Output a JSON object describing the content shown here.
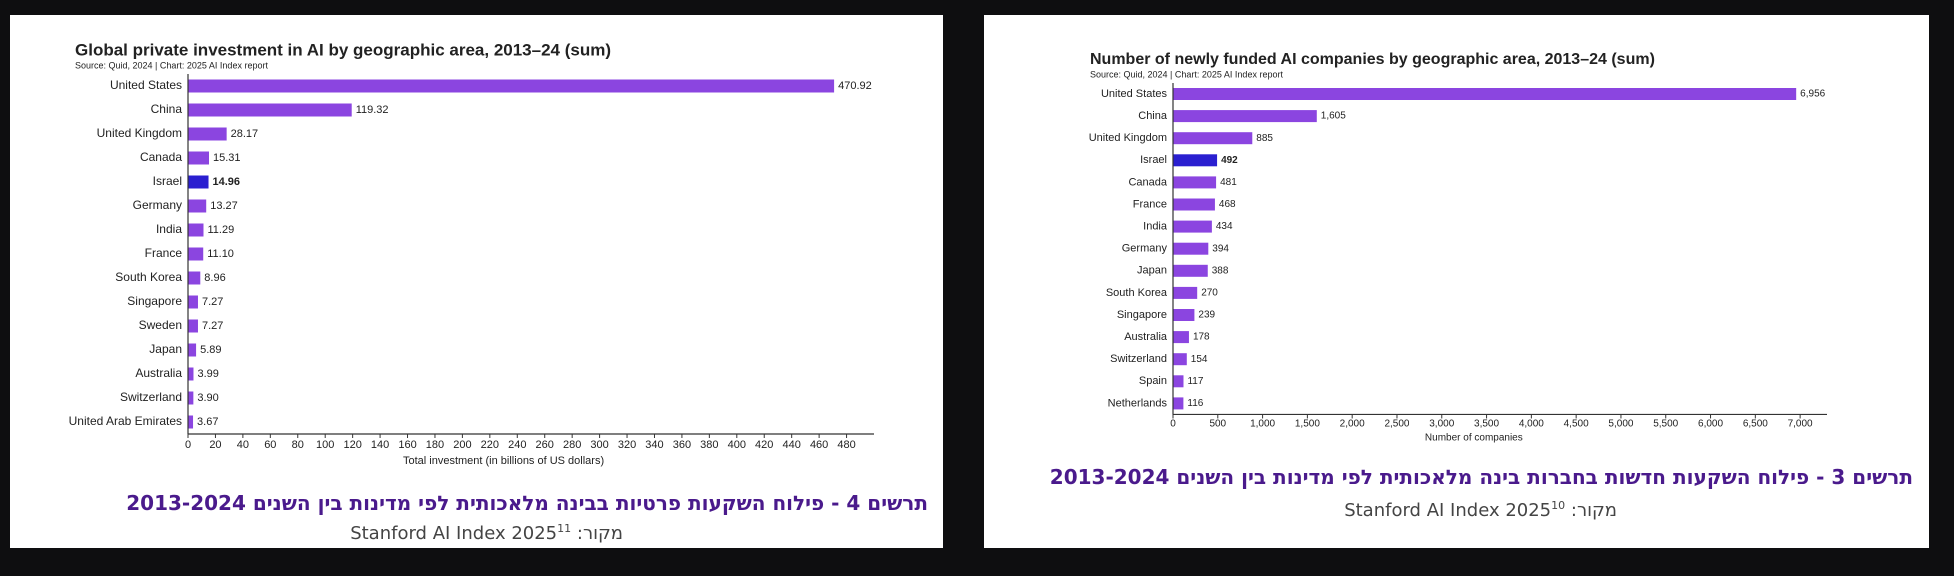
{
  "chart_data": [
    {
      "type": "bar",
      "orientation": "horizontal",
      "title": "Global private investment in AI by geographic area, 2013–24 (sum)",
      "subtitle": "Source: Quid, 2024 | Chart: 2025 AI Index report",
      "categories": [
        "United States",
        "China",
        "United Kingdom",
        "Canada",
        "Israel",
        "Germany",
        "India",
        "France",
        "South Korea",
        "Singapore",
        "Sweden",
        "Japan",
        "Australia",
        "Switzerland",
        "United Arab Emirates"
      ],
      "values": [
        470.92,
        119.32,
        28.17,
        15.31,
        14.96,
        13.27,
        11.29,
        11.1,
        8.96,
        7.27,
        7.27,
        5.89,
        3.99,
        3.9,
        3.67
      ],
      "value_labels": [
        "470.92",
        "119.32",
        "28.17",
        "15.31",
        "14.96",
        "13.27",
        "11.29",
        "11.10",
        "8.96",
        "7.27",
        "7.27",
        "5.89",
        "3.99",
        "3.90",
        "3.67"
      ],
      "colors": [
        "#8b45e0",
        "#8b45e0",
        "#8b45e0",
        "#8b45e0",
        "#2a1fd0",
        "#8b45e0",
        "#8b45e0",
        "#8b45e0",
        "#8b45e0",
        "#8b45e0",
        "#8b45e0",
        "#8b45e0",
        "#8b45e0",
        "#8b45e0",
        "#8b45e0"
      ],
      "xlim": [
        0,
        500
      ],
      "xticks": [
        0,
        20,
        40,
        60,
        80,
        100,
        120,
        140,
        160,
        180,
        200,
        220,
        240,
        260,
        280,
        300,
        320,
        340,
        360,
        380,
        400,
        420,
        440,
        460,
        480
      ],
      "xlabel": "Total investment (in billions of US dollars)",
      "caption": "תרשים 4 - פילוח השקעות פרטיות בבינה מלאכותית לפי מדינות בין השנים 2013-2024",
      "source_label": "מקור:",
      "source": "Stanford AI Index 2025",
      "footnote": "11"
    },
    {
      "type": "bar",
      "orientation": "horizontal",
      "title": "Number of newly funded AI companies by geographic area, 2013–24 (sum)",
      "subtitle": "Source: Quid, 2024 | Chart: 2025 AI Index report",
      "categories": [
        "United States",
        "China",
        "United Kingdom",
        "Israel",
        "Canada",
        "France",
        "India",
        "Germany",
        "Japan",
        "South Korea",
        "Singapore",
        "Australia",
        "Switzerland",
        "Spain",
        "Netherlands"
      ],
      "values": [
        6956,
        1605,
        885,
        492,
        481,
        468,
        434,
        394,
        388,
        270,
        239,
        178,
        154,
        117,
        116
      ],
      "value_labels": [
        "6,956",
        "1,605",
        "885",
        "492",
        "481",
        "468",
        "434",
        "394",
        "388",
        "270",
        "239",
        "178",
        "154",
        "117",
        "116"
      ],
      "colors": [
        "#8b45e0",
        "#8b45e0",
        "#8b45e0",
        "#2a1fd0",
        "#8b45e0",
        "#8b45e0",
        "#8b45e0",
        "#8b45e0",
        "#8b45e0",
        "#8b45e0",
        "#8b45e0",
        "#8b45e0",
        "#8b45e0",
        "#8b45e0",
        "#8b45e0"
      ],
      "xlim": [
        0,
        7300
      ],
      "xticks": [
        0,
        500,
        {
          "value": 1000,
          "label": "1,000"
        },
        {
          "value": 1500,
          "label": "1,500"
        },
        {
          "value": 2000,
          "label": "2,000"
        },
        {
          "value": 2500,
          "label": "2,500"
        },
        {
          "value": 3000,
          "label": "3,000"
        },
        {
          "value": 3500,
          "label": "3,500"
        },
        {
          "value": 4000,
          "label": "4,000"
        },
        {
          "value": 4500,
          "label": "4,500"
        },
        {
          "value": 5000,
          "label": "5,000"
        },
        {
          "value": 5500,
          "label": "5,500"
        },
        {
          "value": 6000,
          "label": "6,000"
        },
        {
          "value": 6500,
          "label": "6,500"
        },
        {
          "value": 7000,
          "label": "7,000"
        }
      ],
      "xlabel": "Number of companies",
      "caption": "תרשים 3 - פילוח השקעות חדשות בחברות בינה מלאכותית לפי מדינות בין השנים 2013-2024",
      "source_label": "מקור:",
      "source": "Stanford AI Index 2025",
      "footnote": "10"
    }
  ]
}
